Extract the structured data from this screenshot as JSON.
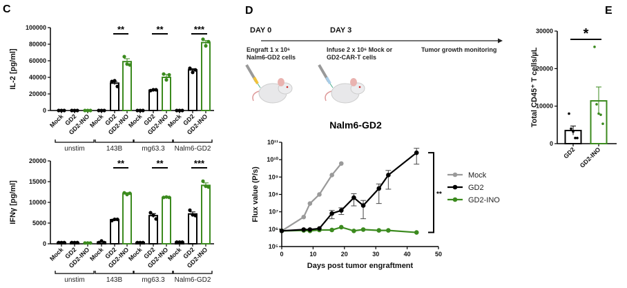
{
  "panels": {
    "c": "C",
    "d": "D",
    "e": "E"
  },
  "colors": {
    "gd2": "#000000",
    "gd2_ino": "#3b8a1e",
    "mock": "#9a9a9a"
  },
  "schematic": {
    "day0": "DAY 0",
    "day3": "DAY 3",
    "step1_line1": "Engraft 1 x 10⁶",
    "step1_line2": "Nalm6-GD2 cells",
    "step2_line1": "Infuse 2 x 10⁶ Mock or",
    "step2_line2": "GD2-CAR-T cells",
    "step3": "Tumor growth monitoring",
    "icons": [
      "syringe-icon",
      "mouse-icon"
    ]
  },
  "chart_data": [
    {
      "type": "bar",
      "ylabel": "IL-2 [pg/ml]",
      "ylim": [
        0,
        100000
      ],
      "yticks": [
        0,
        20000,
        40000,
        60000,
        80000,
        100000
      ],
      "categories": [
        "Mock",
        "GD2",
        "GD2-INO",
        "Mock",
        "GD2",
        "GD2-INO",
        "Mock",
        "GD2",
        "GD2-INO",
        "Mock",
        "GD2",
        "GD2-INO"
      ],
      "groups": [
        "unstim",
        "143B",
        "mg63.3",
        "Nalm6-GD2"
      ],
      "values": [
        0,
        0,
        0,
        0,
        33000,
        59000,
        0,
        24500,
        40000,
        0,
        49000,
        82000
      ],
      "errors": [
        0,
        0,
        0,
        0,
        2000,
        3500,
        0,
        600,
        3500,
        0,
        1500,
        2500
      ],
      "points": [
        [
          0,
          0,
          0
        ],
        [
          0,
          0,
          0
        ],
        [
          0,
          0,
          0
        ],
        [
          0,
          0,
          0
        ],
        [
          35000,
          36000,
          29000
        ],
        [
          65000,
          56000,
          55000
        ],
        [
          0,
          0,
          0
        ],
        [
          24000,
          25000,
          25000
        ],
        [
          44000,
          37000,
          43000
        ],
        [
          0,
          0,
          0
        ],
        [
          51000,
          46000,
          49000
        ],
        [
          86000,
          78000,
          83000
        ]
      ],
      "significance": [
        {
          "group": "143B",
          "label": "**"
        },
        {
          "group": "mg63.3",
          "label": "**"
        },
        {
          "group": "Nalm6-GD2",
          "label": "***"
        }
      ]
    },
    {
      "type": "bar",
      "ylabel": "IFNγ [pg/ml]",
      "ylim": [
        0,
        20000
      ],
      "yticks": [
        0,
        5000,
        10000,
        15000,
        20000
      ],
      "categories": [
        "Mock",
        "GD2",
        "GD2-INO",
        "Mock",
        "GD2",
        "GD2-INO",
        "Mock",
        "GD2",
        "GD2-INO",
        "Mock",
        "GD2",
        "GD2-INO"
      ],
      "groups": [
        "unstim",
        "143B",
        "mg63.3",
        "Nalm6-GD2"
      ],
      "values": [
        300,
        300,
        200,
        400,
        5800,
        12100,
        300,
        6800,
        11200,
        400,
        7200,
        14100
      ],
      "errors": [
        0,
        0,
        0,
        100,
        150,
        250,
        0,
        500,
        100,
        0,
        500,
        600
      ],
      "points": [
        [
          300,
          300,
          300
        ],
        [
          300,
          300,
          300
        ],
        [
          200,
          200,
          200
        ],
        [
          300,
          700,
          300
        ],
        [
          5600,
          5900,
          5900
        ],
        [
          12300,
          11900,
          12200
        ],
        [
          300,
          300,
          300
        ],
        [
          7500,
          6900,
          6000
        ],
        [
          11200,
          11300,
          11200
        ],
        [
          400,
          400,
          400
        ],
        [
          8100,
          7000,
          6800
        ],
        [
          15100,
          13900,
          13700
        ]
      ],
      "significance": [
        {
          "group": "143B",
          "label": "**"
        },
        {
          "group": "mg63.3",
          "label": "**"
        },
        {
          "group": "Nalm6-GD2",
          "label": "***"
        }
      ]
    },
    {
      "type": "line",
      "title": "Nalm6-GD2",
      "xlabel": "Days post tumor engraftment",
      "ylabel": "Flux value (P/s)",
      "xlim": [
        0,
        50
      ],
      "xticks": [
        0,
        10,
        20,
        30,
        40,
        50
      ],
      "ylim": [
        100000,
        100000000000
      ],
      "yscale": "log",
      "yticks": [
        100000,
        1000000,
        10000000,
        100000000,
        1000000000,
        10000000000,
        100000000000
      ],
      "ytick_labels": [
        "10⁵",
        "10⁶",
        "10⁷",
        "10⁸",
        "10⁹",
        "10¹⁰",
        "10¹¹"
      ],
      "legend_position": "right",
      "significance": "**",
      "series": [
        {
          "name": "Mock",
          "x": [
            0,
            7,
            9,
            12,
            16,
            19
          ],
          "y": [
            800000,
            5000000,
            30000000,
            100000000,
            1300000000,
            6000000000
          ]
        },
        {
          "name": "GD2",
          "x": [
            0,
            7,
            9,
            12,
            16,
            19,
            23,
            26,
            31,
            34,
            43
          ],
          "y": [
            800000,
            950000,
            950000,
            1100000,
            8000000,
            12000000,
            65000000,
            23000000,
            220000000,
            1300000000,
            25000000000
          ],
          "err": [
            null,
            null,
            null,
            null,
            [
              4000000,
              12000000
            ],
            [
              7000000,
              17000000
            ],
            [
              22000000,
              110000000
            ],
            [
              4000000,
              45000000
            ],
            [
              30000000,
              400000000
            ],
            [
              200000000,
              2400000000
            ],
            [
              5500000000,
              45000000000
            ]
          ]
        },
        {
          "name": "GD2-INO",
          "x": [
            0,
            7,
            9,
            12,
            16,
            19,
            23,
            26,
            31,
            34,
            43
          ],
          "y": [
            800000,
            850000,
            800000,
            900000,
            900000,
            1300000,
            800000,
            950000,
            850000,
            850000,
            650000
          ]
        }
      ]
    },
    {
      "type": "bar",
      "ylabel": "Total CD45⁺ T cells/µL",
      "ylim": [
        0,
        30000
      ],
      "yticks": [
        0,
        10000,
        20000,
        30000
      ],
      "categories": [
        "GD2",
        "GD2-INO"
      ],
      "values": [
        3500,
        11400
      ],
      "errors": [
        1200,
        3700
      ],
      "points": [
        [
          8000,
          4000,
          3200,
          1500,
          1500
        ],
        [
          25800,
          10500,
          8000,
          7700,
          5300
        ]
      ],
      "significance": [
        {
          "label": "*"
        }
      ]
    }
  ]
}
